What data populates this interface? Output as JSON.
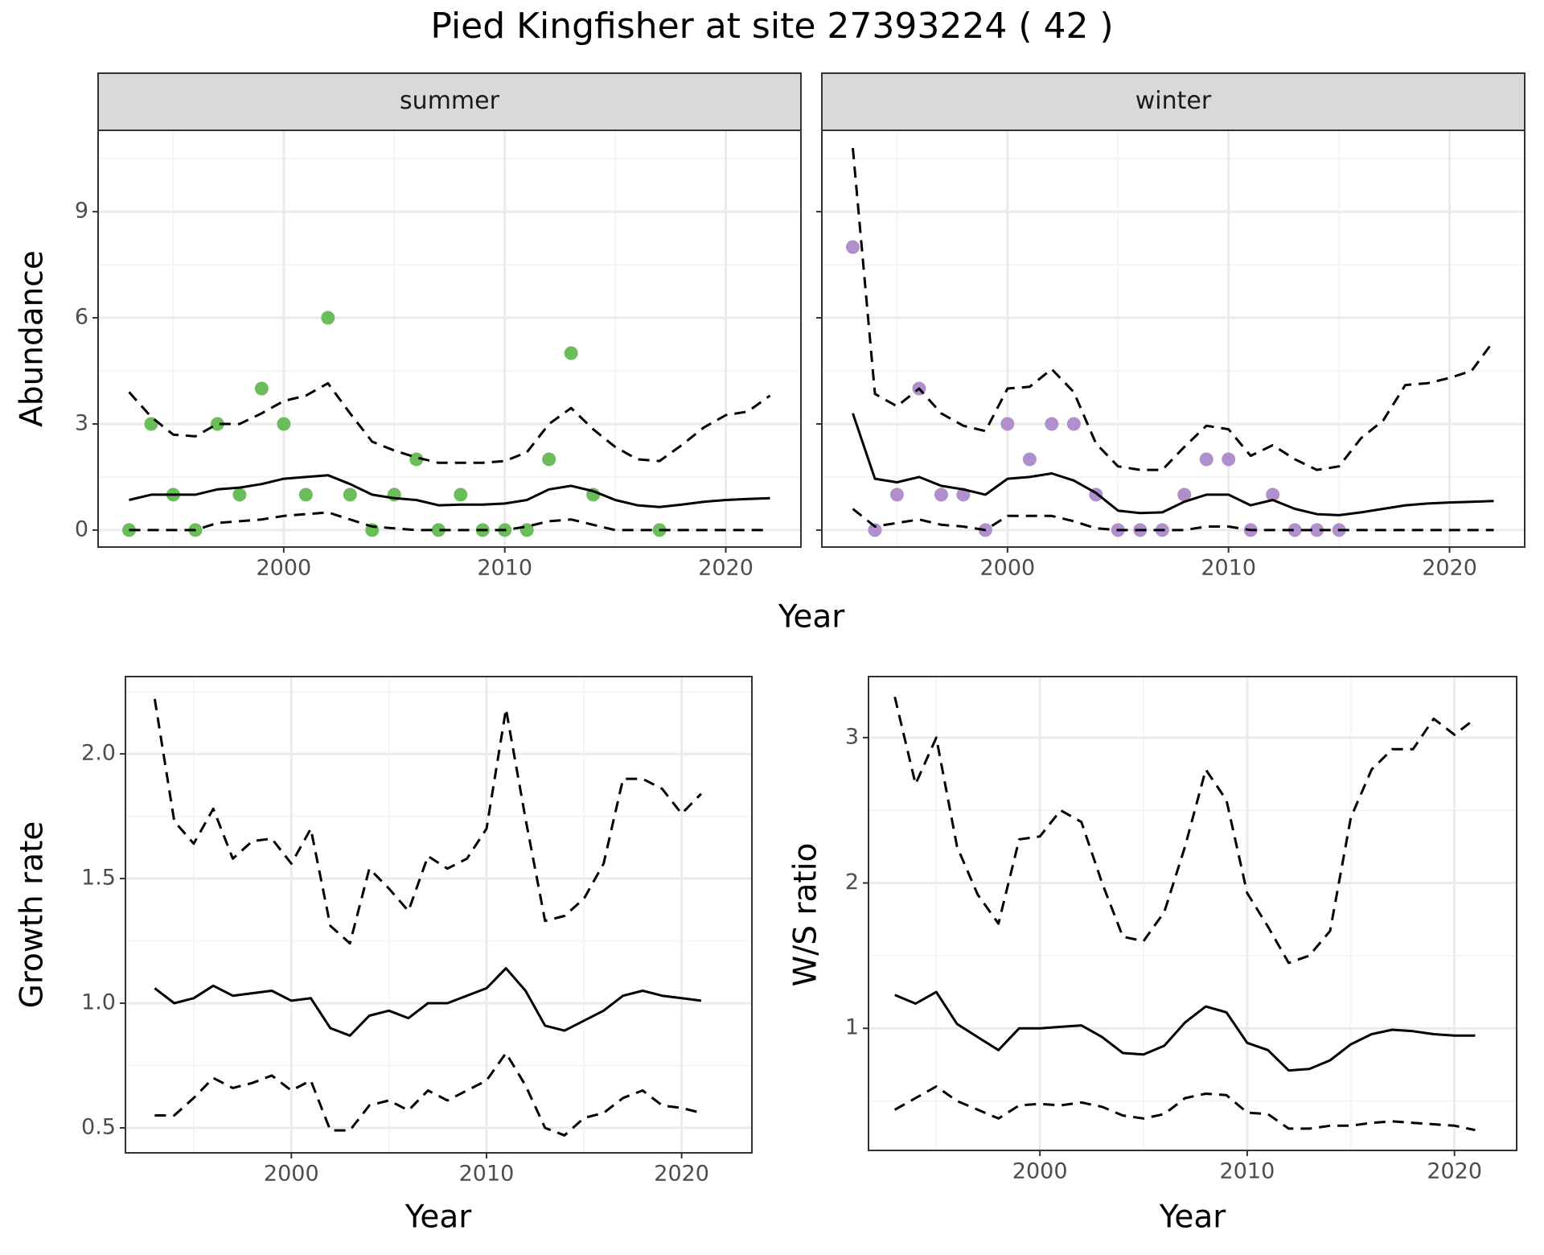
{
  "title": "Pied Kingfisher at site 27393224 ( 42 )",
  "chart_data": [
    {
      "type": "line",
      "strip": "summer",
      "xlabel": "Year",
      "ylabel": "Abundance",
      "xlim": [
        1991.6,
        2023.4
      ],
      "ylim": [
        -0.48,
        11.3
      ],
      "xticks": [
        2000,
        2010,
        2020
      ],
      "yticks": [
        0,
        3,
        6,
        9
      ],
      "grid": true,
      "minor_grid": true,
      "x": [
        1993,
        1994,
        1995,
        1996,
        1997,
        1998,
        1999,
        2000,
        2001,
        2002,
        2003,
        2004,
        2005,
        2006,
        2007,
        2008,
        2009,
        2010,
        2011,
        2012,
        2013,
        2014,
        2015,
        2016,
        2017,
        2018,
        2019,
        2020,
        2021,
        2022
      ],
      "series": [
        {
          "type": "scatter",
          "color": "#6abd5a",
          "x": [
            1993,
            1994,
            1995,
            1996,
            1997,
            1998,
            1999,
            2000,
            2001,
            2002,
            2003,
            2004,
            2005,
            2006,
            2007,
            2008,
            2009,
            2010,
            2011,
            2012,
            2013,
            2014,
            2017
          ],
          "values": [
            0,
            3,
            1,
            0,
            3,
            1,
            4,
            3,
            1,
            6,
            1,
            0,
            1,
            2,
            0,
            1,
            0,
            0,
            0,
            2,
            5,
            1,
            0
          ]
        },
        {
          "type": "line",
          "color": "#000000",
          "dashed": false,
          "values": [
            0.85,
            1.0,
            1.0,
            1.0,
            1.15,
            1.2,
            1.3,
            1.45,
            1.5,
            1.55,
            1.3,
            1.0,
            0.9,
            0.85,
            0.7,
            0.72,
            0.72,
            0.75,
            0.85,
            1.15,
            1.25,
            1.1,
            0.85,
            0.7,
            0.65,
            0.72,
            0.8,
            0.85,
            0.88,
            0.9
          ]
        },
        {
          "type": "line",
          "color": "#000000",
          "dashed": true,
          "values": [
            3.9,
            3.2,
            2.7,
            2.65,
            3.0,
            3.0,
            3.3,
            3.65,
            3.8,
            4.15,
            3.3,
            2.5,
            2.25,
            2.05,
            1.9,
            1.9,
            1.9,
            1.95,
            2.2,
            3.0,
            3.45,
            2.85,
            2.35,
            2.0,
            1.95,
            2.4,
            2.9,
            3.25,
            3.35,
            3.8
          ]
        },
        {
          "type": "line",
          "color": "#000000",
          "dashed": true,
          "values": [
            0,
            0,
            0,
            0,
            0.2,
            0.25,
            0.3,
            0.4,
            0.45,
            0.5,
            0.3,
            0.1,
            0.05,
            0,
            0,
            0,
            0,
            0,
            0.1,
            0.25,
            0.3,
            0.15,
            0,
            0,
            0,
            0,
            0,
            0,
            0,
            0
          ]
        }
      ]
    },
    {
      "type": "line",
      "strip": "winter",
      "xlim": [
        1991.6,
        2023.4
      ],
      "ylim": [
        -0.48,
        11.3
      ],
      "xticks": [
        2000,
        2010,
        2020
      ],
      "yticks": [
        0,
        3,
        6,
        9
      ],
      "grid": true,
      "minor_grid": true,
      "x": [
        1993,
        1994,
        1995,
        1996,
        1997,
        1998,
        1999,
        2000,
        2001,
        2002,
        2003,
        2004,
        2005,
        2006,
        2007,
        2008,
        2009,
        2010,
        2011,
        2012,
        2013,
        2014,
        2015,
        2016,
        2017,
        2018,
        2019,
        2020,
        2021,
        2022
      ],
      "series": [
        {
          "type": "scatter",
          "color": "#b18fcc",
          "x": [
            1993,
            1994,
            1995,
            1996,
            1997,
            1998,
            1999,
            2000,
            2001,
            2002,
            2003,
            2004,
            2005,
            2006,
            2007,
            2008,
            2009,
            2010,
            2011,
            2012,
            2013,
            2014,
            2015
          ],
          "values": [
            8,
            0,
            1,
            4,
            1,
            1,
            0,
            3,
            2,
            3,
            3,
            1,
            0,
            0,
            0,
            1,
            2,
            2,
            0,
            1,
            0,
            0,
            0
          ]
        },
        {
          "type": "line",
          "color": "#000000",
          "dashed": false,
          "values": [
            3.3,
            1.45,
            1.35,
            1.5,
            1.25,
            1.15,
            1.0,
            1.45,
            1.5,
            1.6,
            1.4,
            1.05,
            0.55,
            0.48,
            0.5,
            0.8,
            1.0,
            1.0,
            0.7,
            0.85,
            0.6,
            0.45,
            0.42,
            0.5,
            0.6,
            0.7,
            0.75,
            0.78,
            0.8,
            0.82
          ]
        },
        {
          "type": "line",
          "color": "#000000",
          "dashed": true,
          "values": [
            10.8,
            3.85,
            3.5,
            4.0,
            3.3,
            2.95,
            2.8,
            4.0,
            4.05,
            4.55,
            3.9,
            2.45,
            1.8,
            1.7,
            1.7,
            2.35,
            2.95,
            2.85,
            2.1,
            2.4,
            2.0,
            1.7,
            1.8,
            2.6,
            3.1,
            4.1,
            4.15,
            4.3,
            4.5,
            5.35
          ]
        },
        {
          "type": "line",
          "color": "#000000",
          "dashed": true,
          "values": [
            0.6,
            0.1,
            0.2,
            0.3,
            0.15,
            0.1,
            0.0,
            0.4,
            0.4,
            0.4,
            0.25,
            0.05,
            0,
            0,
            0,
            0,
            0.1,
            0.1,
            0,
            0,
            0,
            0,
            0,
            0,
            0,
            0,
            0,
            0,
            0,
            0
          ]
        }
      ]
    },
    {
      "type": "line",
      "xlabel": "Year",
      "ylabel": "Growth rate",
      "xlim": [
        1991.5,
        2023.6
      ],
      "ylim": [
        0.4,
        2.31
      ],
      "xticks": [
        2000,
        2010,
        2020
      ],
      "yticks": [
        0.5,
        {
          "value": 1,
          "label": "1.0"
        },
        1.5,
        {
          "value": 2,
          "label": "2.0"
        }
      ],
      "grid": true,
      "minor_grid": true,
      "x": [
        1993,
        1994,
        1995,
        1996,
        1997,
        1998,
        1999,
        2000,
        2001,
        2002,
        2003,
        2004,
        2005,
        2006,
        2007,
        2008,
        2009,
        2010,
        2011,
        2012,
        2013,
        2014,
        2015,
        2016,
        2017,
        2018,
        2019,
        2020,
        2021
      ],
      "series": [
        {
          "type": "line",
          "color": "#000000",
          "dashed": false,
          "values": [
            1.06,
            1.0,
            1.02,
            1.07,
            1.03,
            1.04,
            1.05,
            1.01,
            1.02,
            0.9,
            0.87,
            0.95,
            0.97,
            0.94,
            1.0,
            1.0,
            1.03,
            1.06,
            1.14,
            1.05,
            0.91,
            0.89,
            0.93,
            0.97,
            1.03,
            1.05,
            1.03,
            1.02,
            1.01
          ]
        },
        {
          "type": "line",
          "color": "#000000",
          "dashed": true,
          "values": [
            2.22,
            1.73,
            1.64,
            1.78,
            1.58,
            1.65,
            1.66,
            1.56,
            1.7,
            1.31,
            1.24,
            1.54,
            1.46,
            1.37,
            1.59,
            1.54,
            1.58,
            1.7,
            2.18,
            1.74,
            1.33,
            1.35,
            1.42,
            1.56,
            1.9,
            1.9,
            1.86,
            1.76,
            1.84
          ]
        },
        {
          "type": "line",
          "color": "#000000",
          "dashed": true,
          "values": [
            0.55,
            0.55,
            0.62,
            0.7,
            0.66,
            0.68,
            0.71,
            0.65,
            0.69,
            0.49,
            0.49,
            0.59,
            0.61,
            0.57,
            0.65,
            0.61,
            0.65,
            0.69,
            0.8,
            0.67,
            0.5,
            0.47,
            0.54,
            0.56,
            0.62,
            0.65,
            0.59,
            0.58,
            0.56
          ]
        }
      ]
    },
    {
      "type": "line",
      "xlabel": "Year",
      "ylabel": "W/S ratio",
      "xlim": [
        1991.73,
        2023.0
      ],
      "ylim": [
        0.16,
        3.42
      ],
      "xticks": [
        2000,
        2010,
        2020
      ],
      "yticks": [
        1,
        2,
        3
      ],
      "grid": true,
      "minor_grid": true,
      "x": [
        1993,
        1994,
        1995,
        1996,
        1997,
        1998,
        1999,
        2000,
        2001,
        2002,
        2003,
        2004,
        2005,
        2006,
        2007,
        2008,
        2009,
        2010,
        2011,
        2012,
        2013,
        2014,
        2015,
        2016,
        2017,
        2018,
        2019,
        2020,
        2021
      ],
      "series": [
        {
          "type": "line",
          "color": "#000000",
          "dashed": false,
          "values": [
            1.23,
            1.17,
            1.25,
            1.03,
            0.94,
            0.85,
            1.0,
            1.0,
            1.01,
            1.02,
            0.94,
            0.83,
            0.82,
            0.88,
            1.04,
            1.15,
            1.11,
            0.9,
            0.85,
            0.71,
            0.72,
            0.78,
            0.89,
            0.96,
            0.99,
            0.98,
            0.96,
            0.95,
            0.95
          ]
        },
        {
          "type": "line",
          "color": "#000000",
          "dashed": true,
          "values": [
            3.28,
            2.68,
            3.0,
            2.25,
            1.92,
            1.72,
            2.3,
            2.32,
            2.5,
            2.42,
            2.0,
            1.63,
            1.6,
            1.8,
            2.25,
            2.78,
            2.57,
            1.93,
            1.7,
            1.45,
            1.5,
            1.67,
            2.45,
            2.78,
            2.92,
            2.92,
            3.13,
            3.02,
            3.13
          ]
        },
        {
          "type": "line",
          "color": "#000000",
          "dashed": true,
          "values": [
            0.44,
            0.52,
            0.6,
            0.5,
            0.44,
            0.38,
            0.47,
            0.48,
            0.47,
            0.49,
            0.46,
            0.4,
            0.38,
            0.41,
            0.52,
            0.55,
            0.54,
            0.42,
            0.41,
            0.31,
            0.31,
            0.33,
            0.33,
            0.35,
            0.36,
            0.35,
            0.34,
            0.33,
            0.3
          ]
        }
      ]
    }
  ]
}
